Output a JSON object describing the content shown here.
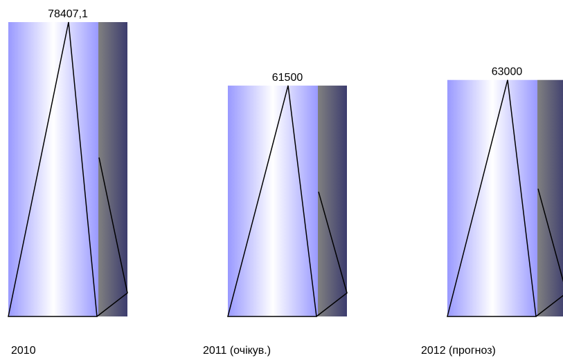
{
  "chart_data": {
    "type": "bar",
    "style": "pyramid-in-prism",
    "title": "",
    "xlabel": "",
    "ylabel": "",
    "categories": [
      "2010",
      "2011 (очікув.)",
      "2012 (прогноз)"
    ],
    "values": [
      78407.1,
      61500,
      63000
    ],
    "value_labels": [
      "78407,1",
      "61500",
      "63000"
    ],
    "ylim": [
      0,
      78407.1
    ],
    "grid": false,
    "legend": "none"
  },
  "colors": {
    "face_edge": "#9999ff",
    "face_center": "#ffffff",
    "side_light": "#808080",
    "side_dark": "#3c3c6e",
    "outline": "#000000"
  }
}
